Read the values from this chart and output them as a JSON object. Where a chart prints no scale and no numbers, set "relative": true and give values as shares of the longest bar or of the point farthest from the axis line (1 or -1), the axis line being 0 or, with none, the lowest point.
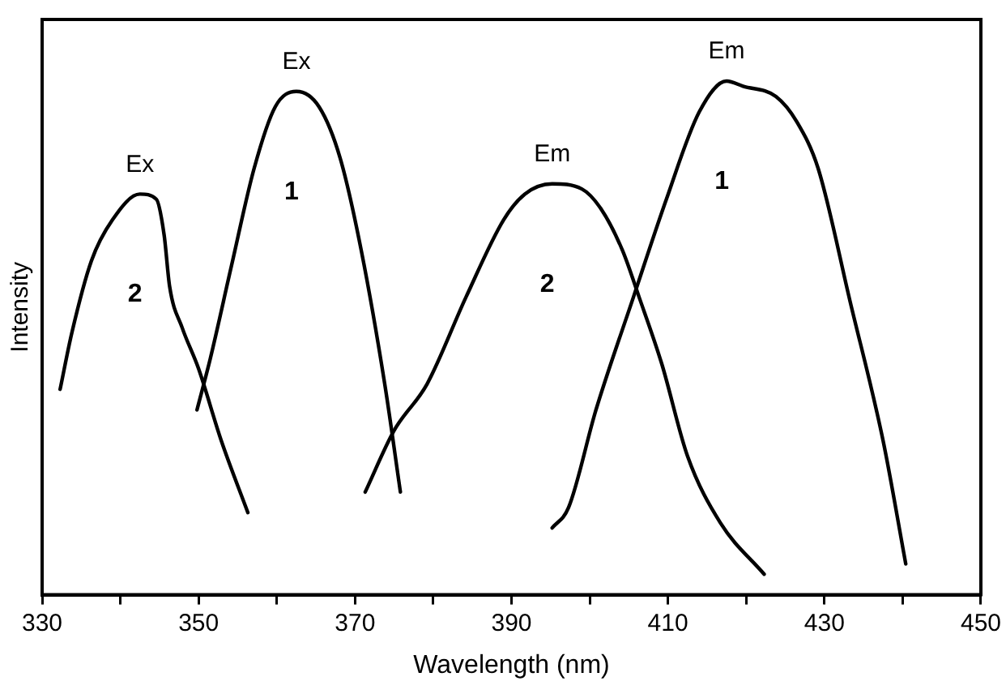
{
  "chart_data": {
    "type": "line",
    "relative": true,
    "xlabel": "Wavelength (nm)",
    "ylabel": "Intensity",
    "xlim": [
      330,
      450
    ],
    "xticks": [
      330,
      {
        "value": 340,
        "label": null
      },
      350,
      {
        "value": 360,
        "label": null
      },
      370,
      {
        "value": 380,
        "label": null
      },
      390,
      {
        "value": 400,
        "label": null
      },
      410,
      {
        "value": 420,
        "label": null
      },
      430,
      {
        "value": 440,
        "label": null
      },
      450
    ],
    "grid": false,
    "legend": false,
    "marker": "none",
    "line_style": "solid",
    "series": [
      {
        "color": "#000000",
        "x": [
          332.3,
          333.8,
          336.3,
          339.0,
          342.5,
          344.6,
          345.6,
          346.3,
          347.9,
          350.0,
          352.9,
          356.3
        ],
        "values": [
          0.4,
          0.51,
          0.65,
          0.73,
          0.78,
          0.77,
          0.7,
          0.6,
          0.52,
          0.44,
          0.3,
          0.16
        ]
      },
      {
        "color": "#000000",
        "x": [
          349.8,
          351.5,
          354.2,
          357.1,
          359.8,
          362.5,
          365.4,
          368.1,
          370.8,
          373.8,
          375.8
        ],
        "values": [
          0.36,
          0.46,
          0.64,
          0.83,
          0.95,
          0.98,
          0.95,
          0.85,
          0.67,
          0.41,
          0.2
        ]
      },
      {
        "color": "#000000",
        "x": [
          371.3,
          375.0,
          379.2,
          384.2,
          389.0,
          391.7,
          395.2,
          399.0,
          401.5,
          404.2,
          406.3,
          409.2,
          412.5,
          416.7,
          422.3
        ],
        "values": [
          0.2,
          0.32,
          0.41,
          0.58,
          0.73,
          0.78,
          0.8,
          0.79,
          0.75,
          0.67,
          0.58,
          0.45,
          0.27,
          0.14,
          0.04
        ]
      },
      {
        "color": "#000000",
        "x": [
          395.2,
          397.3,
          400.8,
          405.6,
          409.8,
          414.0,
          417.5,
          419.6,
          423.8,
          426.5,
          429.2,
          433.3,
          437.5,
          440.4
        ],
        "values": [
          0.13,
          0.17,
          0.36,
          0.58,
          0.77,
          0.94,
          1.0,
          0.99,
          0.97,
          0.92,
          0.83,
          0.57,
          0.3,
          0.06
        ]
      }
    ],
    "annotations": [
      "Ex",
      "2",
      "Ex",
      "1",
      "Em",
      "2",
      "Em",
      "1"
    ]
  }
}
